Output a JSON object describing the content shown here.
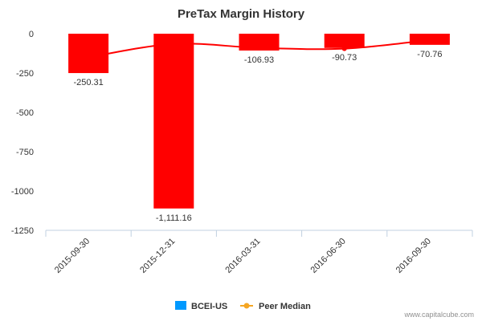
{
  "chart_data": {
    "type": "bar",
    "title": "PreTax Margin History",
    "categories": [
      "2015-09-30",
      "2015-12-31",
      "2016-03-31",
      "2016-06-30",
      "2016-09-30"
    ],
    "series": [
      {
        "name": "BCEI-US",
        "kind": "bar",
        "color": "#ff0000",
        "values": [
          -250.31,
          -1111.16,
          -106.93,
          -90.73,
          -70.76
        ],
        "labels": [
          "-250.31",
          "-1,111.16",
          "-106.93",
          "-90.73",
          "-70.76"
        ]
      },
      {
        "name": "Peer Median",
        "kind": "line",
        "color": "#ff0000",
        "values": [
          -150,
          -65,
          -90,
          -95,
          -40
        ]
      }
    ],
    "yticks": [
      "0",
      "-250",
      "-500",
      "-750",
      "-1000",
      "-1250"
    ],
    "ytick_values": [
      0,
      -250,
      -500,
      -750,
      -1000,
      -1250
    ],
    "ylim": [
      -1250,
      0
    ],
    "xlabel": "",
    "ylabel": "",
    "grid": false,
    "legend": {
      "position": "bottom",
      "items": [
        {
          "name": "BCEI-US",
          "color": "#0099ff",
          "marker": "square"
        },
        {
          "name": "Peer Median",
          "color": "#f5a623",
          "marker": "line-dot"
        }
      ]
    }
  },
  "credit": "www.capitalcube.com"
}
